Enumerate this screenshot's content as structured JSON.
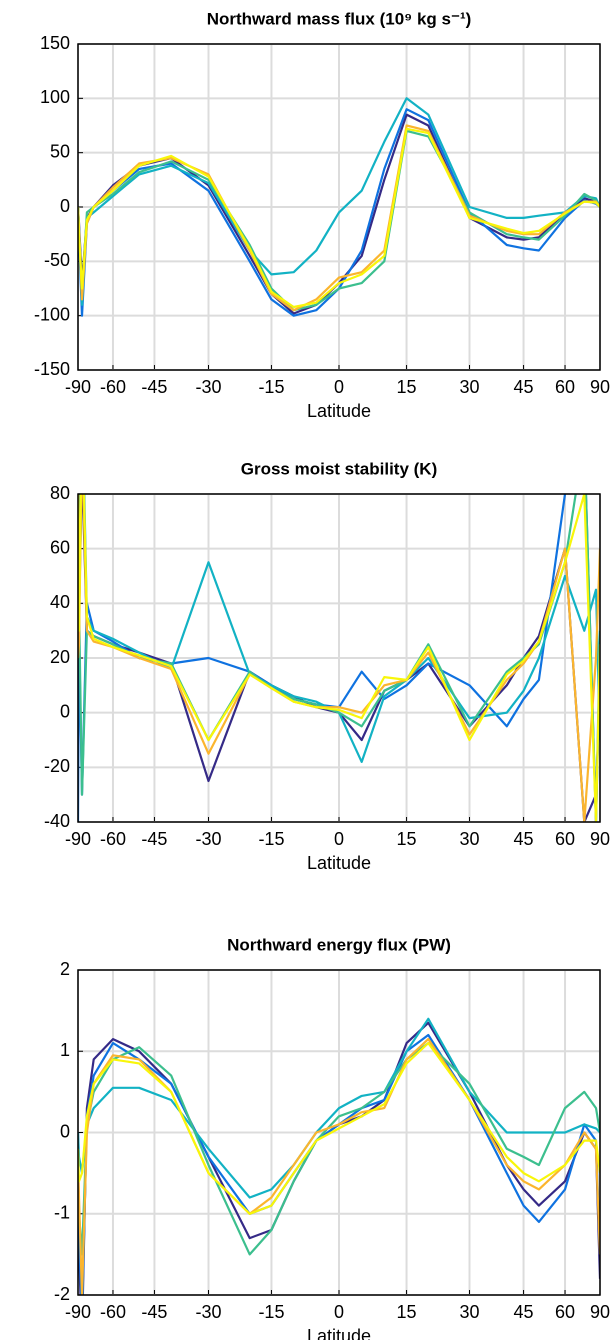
{
  "chart_data": [
    {
      "type": "line",
      "title": "Northward mass flux (10⁹ kg s⁻¹)",
      "xlabel": "Latitude",
      "xscale": "sine",
      "grid": true,
      "x": [
        -90,
        -85,
        -80,
        -75,
        -70,
        -60,
        -50,
        -40,
        -30,
        -20,
        -15,
        -10,
        -5,
        0,
        5,
        10,
        15,
        20,
        30,
        40,
        45,
        50,
        60,
        70,
        80,
        90
      ],
      "xlim": [
        -90,
        90
      ],
      "xticks": [
        -90,
        -60,
        -45,
        -30,
        -15,
        0,
        15,
        30,
        45,
        60,
        90
      ],
      "ylim": [
        -150,
        150
      ],
      "yticks": [
        -150,
        -100,
        -50,
        0,
        50,
        100,
        150
      ],
      "series": [
        {
          "color": "#352a87",
          "values": [
            0,
            -15,
            -70,
            -10,
            0,
            20,
            38,
            45,
            20,
            -45,
            -80,
            -98,
            -90,
            -70,
            -45,
            25,
            85,
            75,
            -10,
            -28,
            -30,
            -28,
            -5,
            8,
            5,
            0
          ]
        },
        {
          "color": "#0f72e0",
          "values": [
            0,
            -30,
            -100,
            -15,
            0,
            15,
            35,
            40,
            15,
            -50,
            -85,
            -100,
            -95,
            -75,
            -40,
            35,
            90,
            80,
            -5,
            -35,
            -38,
            -40,
            -10,
            6,
            3,
            0
          ]
        },
        {
          "color": "#12b2c4",
          "values": [
            0,
            -20,
            -90,
            -10,
            -5,
            10,
            30,
            38,
            22,
            -40,
            -62,
            -60,
            -40,
            -5,
            15,
            60,
            100,
            85,
            0,
            -10,
            -10,
            -8,
            -5,
            10,
            8,
            0
          ]
        },
        {
          "color": "#3cbf8e",
          "values": [
            0,
            -20,
            -80,
            -5,
            0,
            12,
            32,
            42,
            25,
            -35,
            -75,
            -95,
            -90,
            -75,
            -70,
            -50,
            70,
            65,
            -5,
            -25,
            -28,
            -30,
            -8,
            12,
            6,
            0
          ]
        },
        {
          "color": "#fbb52e",
          "values": [
            0,
            -20,
            -85,
            -15,
            0,
            18,
            40,
            45,
            30,
            -40,
            -80,
            -95,
            -85,
            -65,
            -60,
            -40,
            75,
            70,
            -8,
            -22,
            -25,
            -25,
            -5,
            5,
            5,
            0
          ]
        },
        {
          "color": "#f8f60a",
          "values": [
            0,
            -25,
            -75,
            -12,
            0,
            15,
            38,
            47,
            28,
            -38,
            -78,
            -92,
            -88,
            -70,
            -62,
            -45,
            72,
            68,
            -10,
            -20,
            -24,
            -22,
            -6,
            5,
            4,
            0
          ]
        }
      ]
    },
    {
      "type": "line",
      "title": "Gross moist stability (K)",
      "xlabel": "Latitude",
      "xscale": "sine",
      "grid": true,
      "x": [
        -90,
        -85,
        -80,
        -75,
        -70,
        -60,
        -50,
        -40,
        -30,
        -20,
        -15,
        -10,
        -5,
        0,
        5,
        10,
        15,
        20,
        30,
        40,
        45,
        50,
        60,
        70,
        80,
        90
      ],
      "xlim": [
        -90,
        90
      ],
      "xticks": [
        -90,
        -60,
        -45,
        -30,
        -15,
        0,
        15,
        30,
        45,
        60,
        90
      ],
      "ylim": [
        -40,
        80
      ],
      "yticks": [
        -40,
        -20,
        0,
        20,
        40,
        60,
        80
      ],
      "series": [
        {
          "color": "#352a87",
          "values": [
            100,
            35,
            90,
            30,
            28,
            25,
            22,
            18,
            -25,
            15,
            10,
            6,
            2,
            0,
            -10,
            8,
            12,
            18,
            -5,
            10,
            20,
            28,
            60,
            -40,
            -30,
            10
          ]
        },
        {
          "color": "#0f72e0",
          "values": [
            -40,
            30,
            -30,
            40,
            30,
            26,
            20,
            18,
            20,
            15,
            10,
            5,
            3,
            2,
            15,
            5,
            10,
            18,
            10,
            -5,
            5,
            12,
            80,
            100,
            -40,
            20
          ]
        },
        {
          "color": "#12b2c4",
          "values": [
            45,
            35,
            120,
            35,
            30,
            27,
            22,
            16,
            55,
            14,
            10,
            6,
            4,
            0,
            -18,
            6,
            12,
            20,
            -2,
            0,
            8,
            20,
            50,
            30,
            45,
            -10
          ]
        },
        {
          "color": "#3cbf8e",
          "values": [
            80,
            40,
            -30,
            30,
            28,
            25,
            20,
            18,
            -10,
            15,
            9,
            5,
            3,
            0,
            -5,
            8,
            12,
            25,
            -5,
            15,
            20,
            25,
            55,
            100,
            -40,
            30
          ]
        },
        {
          "color": "#fbb52e",
          "values": [
            20,
            25,
            100,
            30,
            26,
            24,
            20,
            16,
            -15,
            14,
            9,
            4,
            2,
            2,
            0,
            10,
            12,
            22,
            -8,
            12,
            18,
            26,
            60,
            -40,
            20,
            60
          ]
        },
        {
          "color": "#f8f60a",
          "values": [
            90,
            30,
            110,
            35,
            27,
            24,
            21,
            17,
            -10,
            14,
            9,
            4,
            2,
            1,
            -2,
            13,
            12,
            24,
            -10,
            14,
            19,
            26,
            55,
            80,
            -40,
            25
          ]
        }
      ]
    },
    {
      "type": "line",
      "title": "Northward energy flux (PW)",
      "xlabel": "Latitude",
      "xscale": "sine",
      "grid": true,
      "x": [
        -90,
        -85,
        -80,
        -75,
        -70,
        -60,
        -50,
        -40,
        -30,
        -20,
        -15,
        -10,
        -5,
        0,
        5,
        10,
        15,
        20,
        30,
        40,
        45,
        50,
        60,
        70,
        80,
        90
      ],
      "xlim": [
        -90,
        90
      ],
      "xticks": [
        -90,
        -60,
        -45,
        -30,
        -15,
        0,
        15,
        30,
        45,
        60,
        90
      ],
      "ylim": [
        -2,
        2
      ],
      "yticks": [
        -2,
        -1,
        0,
        1,
        2
      ],
      "series": [
        {
          "color": "#352a87",
          "values": [
            0,
            -1.5,
            -2.5,
            0.3,
            0.9,
            1.15,
            1.0,
            0.6,
            -0.3,
            -1.3,
            -1.2,
            -0.6,
            -0.1,
            0.1,
            0.2,
            0.4,
            1.1,
            1.35,
            0.5,
            -0.4,
            -0.7,
            -0.9,
            -0.6,
            0,
            -0.2,
            -1.8
          ]
        },
        {
          "color": "#0f72e0",
          "values": [
            -0.3,
            -1.2,
            -2.3,
            0.2,
            0.7,
            1.1,
            0.9,
            0.6,
            -0.3,
            -1.0,
            -0.9,
            -0.5,
            -0.1,
            0.1,
            0.3,
            0.4,
            1.0,
            1.2,
            0.4,
            -0.5,
            -0.9,
            -1.1,
            -0.7,
            0.1,
            -0.1,
            -1.5
          ]
        },
        {
          "color": "#12b2c4",
          "values": [
            0,
            -0.3,
            -0.5,
            0.1,
            0.3,
            0.55,
            0.55,
            0.4,
            -0.2,
            -0.8,
            -0.7,
            -0.4,
            0,
            0.3,
            0.45,
            0.5,
            1.0,
            1.4,
            0.5,
            0,
            0,
            0,
            0,
            0.1,
            0.05,
            0
          ]
        },
        {
          "color": "#3cbf8e",
          "values": [
            -0.5,
            -1.0,
            -1.5,
            0.1,
            0.5,
            0.9,
            1.05,
            0.7,
            -0.4,
            -1.5,
            -1.2,
            -0.6,
            -0.1,
            0.2,
            0.3,
            0.5,
            0.9,
            1.1,
            0.6,
            -0.2,
            -0.3,
            -0.4,
            0.3,
            0.5,
            0.3,
            0
          ]
        },
        {
          "color": "#fbb52e",
          "values": [
            -0.3,
            -0.8,
            -2.0,
            0.0,
            0.6,
            0.95,
            0.9,
            0.5,
            -0.5,
            -1.0,
            -0.8,
            -0.4,
            0,
            0.1,
            0.25,
            0.3,
            0.9,
            1.15,
            0.4,
            -0.4,
            -0.6,
            -0.7,
            -0.4,
            0,
            -0.2,
            -1.5
          ]
        },
        {
          "color": "#f8f60a",
          "values": [
            -0.2,
            -0.6,
            -0.5,
            0.2,
            0.6,
            0.9,
            0.85,
            0.5,
            -0.5,
            -1.0,
            -0.9,
            -0.5,
            -0.1,
            0.05,
            0.2,
            0.35,
            0.85,
            1.1,
            0.4,
            -0.3,
            -0.5,
            -0.6,
            -0.4,
            -0.1,
            -0.1,
            -0.5
          ]
        }
      ]
    }
  ]
}
